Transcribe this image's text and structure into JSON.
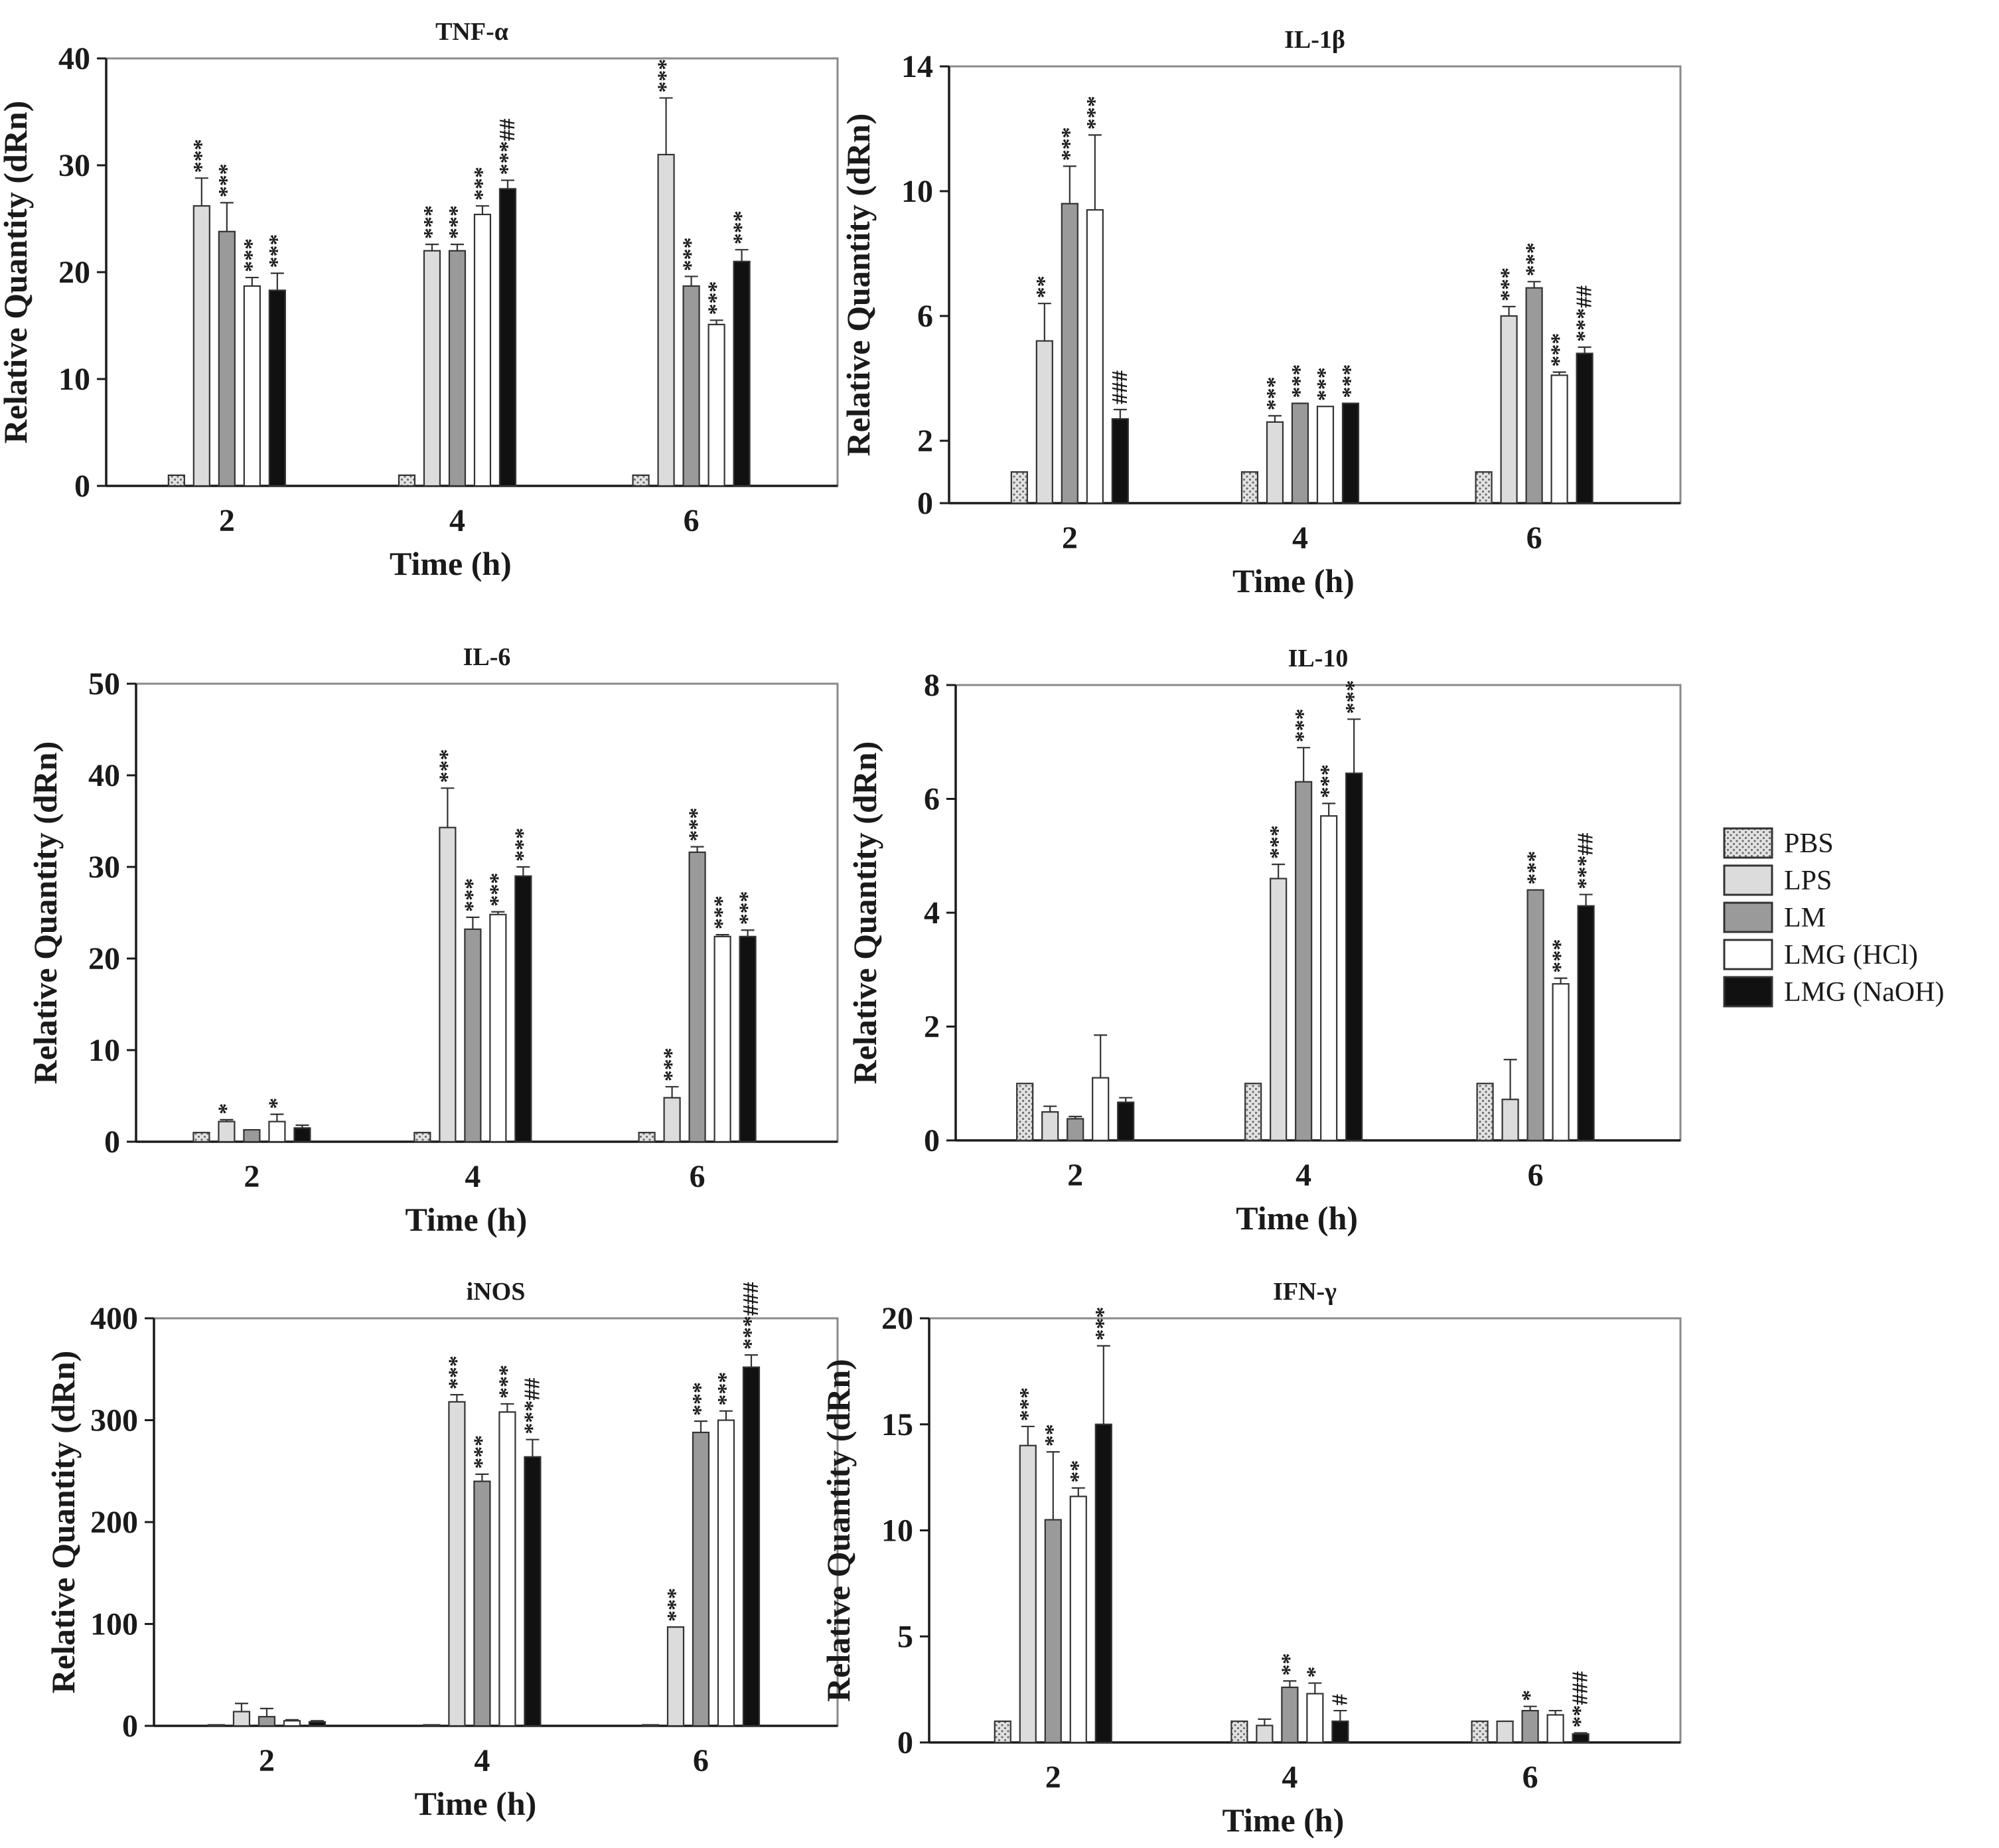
{
  "figure": {
    "background": "#ffffff"
  },
  "groups": [
    {
      "name": "PBS",
      "fill": "#d8d8d8",
      "pattern": "dots"
    },
    {
      "name": "LPS",
      "fill": "#dcdcdc",
      "pattern": "none"
    },
    {
      "name": "LM",
      "fill": "#9a9a9a",
      "pattern": "none"
    },
    {
      "name": "LMG (HCl)",
      "fill": "#ffffff",
      "pattern": "none"
    },
    {
      "name": "LMG (NaOH)",
      "fill": "#111111",
      "pattern": "none"
    }
  ],
  "chart_data": [
    {
      "type": "bar",
      "title": "TNF-α",
      "xlabel": "Time (h)",
      "ylabel": "Relative Quantity (dRn)",
      "categories": [
        "2",
        "4",
        "6"
      ],
      "ylim": [
        0,
        40
      ],
      "yticks": [
        0,
        10,
        20,
        30,
        40
      ],
      "series": [
        {
          "name": "PBS",
          "values": [
            1,
            1,
            1
          ],
          "errors": [
            0,
            0,
            0
          ],
          "annotations": [
            "",
            "",
            ""
          ]
        },
        {
          "name": "LPS",
          "values": [
            26.2,
            22,
            31
          ],
          "errors": [
            2.6,
            0.6,
            5.3
          ],
          "annotations": [
            "***",
            "***",
            "***"
          ]
        },
        {
          "name": "LM",
          "values": [
            23.8,
            22,
            18.7
          ],
          "errors": [
            2.7,
            0.6,
            0.9
          ],
          "annotations": [
            "***",
            "***",
            "***"
          ]
        },
        {
          "name": "LMG (HCl)",
          "values": [
            18.7,
            25.4,
            15.1
          ],
          "errors": [
            0.8,
            0.8,
            0.4
          ],
          "annotations": [
            "***",
            "***",
            "***"
          ]
        },
        {
          "name": "LMG (NaOH)",
          "values": [
            18.3,
            27.8,
            21
          ],
          "errors": [
            1.6,
            0.8,
            1.1
          ],
          "annotations": [
            "***",
            "***##",
            "***"
          ]
        }
      ]
    },
    {
      "type": "bar",
      "title": "IL-1β",
      "xlabel": "Time (h)",
      "ylabel": "Relative Quantity (dRn)",
      "categories": [
        "2",
        "4",
        "6"
      ],
      "ylim": [
        0,
        14
      ],
      "yticks": [
        0,
        2,
        6,
        10,
        14
      ],
      "series": [
        {
          "name": "PBS",
          "values": [
            1,
            1,
            1
          ],
          "errors": [
            0,
            0,
            0
          ],
          "annotations": [
            "",
            "",
            ""
          ]
        },
        {
          "name": "LPS",
          "values": [
            5.2,
            2.6,
            6
          ],
          "errors": [
            1.2,
            0.2,
            0.3
          ],
          "annotations": [
            "**",
            "***",
            "***"
          ]
        },
        {
          "name": "LM",
          "values": [
            9.6,
            3.2,
            6.9
          ],
          "errors": [
            1.2,
            0,
            0.2
          ],
          "annotations": [
            "***",
            "***",
            "***"
          ]
        },
        {
          "name": "LMG (HCl)",
          "values": [
            9.4,
            3.1,
            4.1
          ],
          "errors": [
            2.4,
            0,
            0.1
          ],
          "annotations": [
            "***",
            "***",
            "***"
          ]
        },
        {
          "name": "LMG (NaOH)",
          "values": [
            2.7,
            3.2,
            4.8
          ],
          "errors": [
            0.3,
            0,
            0.2
          ],
          "annotations": [
            "###",
            "***",
            "***##"
          ]
        }
      ]
    },
    {
      "type": "bar",
      "title": "IL-6",
      "xlabel": "Time (h)",
      "ylabel": "Relative Quantity (dRn)",
      "categories": [
        "2",
        "4",
        "6"
      ],
      "ylim": [
        0,
        50
      ],
      "yticks": [
        0,
        10,
        20,
        30,
        40,
        50
      ],
      "series": [
        {
          "name": "PBS",
          "values": [
            1,
            1,
            1
          ],
          "errors": [
            0,
            0,
            0
          ],
          "annotations": [
            "",
            "",
            ""
          ]
        },
        {
          "name": "LPS",
          "values": [
            2.2,
            34.3,
            4.8
          ],
          "errors": [
            0.2,
            4.3,
            1.2
          ],
          "annotations": [
            "*",
            "***",
            "***"
          ]
        },
        {
          "name": "LM",
          "values": [
            1.3,
            23.2,
            31.6
          ],
          "errors": [
            0,
            1.3,
            0.6
          ],
          "annotations": [
            "",
            "***",
            "***"
          ]
        },
        {
          "name": "LMG (HCl)",
          "values": [
            2.2,
            24.8,
            22.4
          ],
          "errors": [
            0.8,
            0.3,
            0.2
          ],
          "annotations": [
            "*",
            "***",
            "***"
          ]
        },
        {
          "name": "LMG (NaOH)",
          "values": [
            1.5,
            29,
            22.4
          ],
          "errors": [
            0.3,
            1,
            0.7
          ],
          "annotations": [
            "",
            "***",
            "***"
          ]
        }
      ]
    },
    {
      "type": "bar",
      "title": "IL-10",
      "xlabel": "Time (h)",
      "ylabel": "Relative Quantity (dRn)",
      "categories": [
        "2",
        "4",
        "6"
      ],
      "ylim": [
        0,
        8
      ],
      "yticks": [
        0,
        2,
        4,
        6,
        8
      ],
      "series": [
        {
          "name": "PBS",
          "values": [
            1,
            1,
            1
          ],
          "errors": [
            0,
            0,
            0
          ],
          "annotations": [
            "",
            "",
            ""
          ]
        },
        {
          "name": "LPS",
          "values": [
            0.5,
            4.6,
            0.72
          ],
          "errors": [
            0.1,
            0.25,
            0.7
          ],
          "annotations": [
            "",
            "***",
            ""
          ]
        },
        {
          "name": "LM",
          "values": [
            0.38,
            6.3,
            4.4
          ],
          "errors": [
            0.04,
            0.6,
            0
          ],
          "annotations": [
            "",
            "***",
            "***"
          ]
        },
        {
          "name": "LMG (HCl)",
          "values": [
            1.1,
            5.7,
            2.75
          ],
          "errors": [
            0.75,
            0.22,
            0.1
          ],
          "annotations": [
            "",
            "***",
            "***"
          ]
        },
        {
          "name": "LMG (NaOH)",
          "values": [
            0.67,
            6.45,
            4.12
          ],
          "errors": [
            0.08,
            0.95,
            0.2
          ],
          "annotations": [
            "",
            "***",
            "***##"
          ]
        }
      ]
    },
    {
      "type": "bar",
      "title": "iNOS",
      "xlabel": "Time (h)",
      "ylabel": "Relative Quantity (dRn)",
      "categories": [
        "2",
        "4",
        "6"
      ],
      "ylim": [
        0,
        400
      ],
      "yticks": [
        0,
        100,
        200,
        300,
        400
      ],
      "series": [
        {
          "name": "PBS",
          "values": [
            1,
            1,
            1
          ],
          "errors": [
            0,
            0,
            0
          ],
          "annotations": [
            "",
            "",
            ""
          ]
        },
        {
          "name": "LPS",
          "values": [
            14,
            318,
            97
          ],
          "errors": [
            8,
            7,
            0
          ],
          "annotations": [
            "",
            "***",
            "***"
          ]
        },
        {
          "name": "LM",
          "values": [
            9,
            240,
            288
          ],
          "errors": [
            8,
            7,
            11
          ],
          "annotations": [
            "",
            "***",
            "***"
          ]
        },
        {
          "name": "LMG (HCl)",
          "values": [
            5,
            308,
            300
          ],
          "errors": [
            1,
            8,
            9
          ],
          "annotations": [
            "",
            "***",
            "***"
          ]
        },
        {
          "name": "LMG (NaOH)",
          "values": [
            4,
            264,
            352
          ],
          "errors": [
            1,
            17,
            12
          ],
          "annotations": [
            "",
            "***##",
            "***###"
          ]
        }
      ]
    },
    {
      "type": "bar",
      "title": "IFN-γ",
      "xlabel": "Time (h)",
      "ylabel": "Relative Quantity (dRn)",
      "categories": [
        "2",
        "4",
        "6"
      ],
      "ylim": [
        0,
        20
      ],
      "yticks": [
        0,
        5,
        10,
        15,
        20
      ],
      "series": [
        {
          "name": "PBS",
          "values": [
            1,
            1,
            1
          ],
          "errors": [
            0,
            0,
            0
          ],
          "annotations": [
            "",
            "",
            ""
          ]
        },
        {
          "name": "LPS",
          "values": [
            14,
            0.8,
            1
          ],
          "errors": [
            0.9,
            0.3,
            0
          ],
          "annotations": [
            "***",
            "",
            ""
          ]
        },
        {
          "name": "LM",
          "values": [
            10.5,
            2.6,
            1.5
          ],
          "errors": [
            3.2,
            0.3,
            0.2
          ],
          "annotations": [
            "**",
            "**",
            "*"
          ]
        },
        {
          "name": "LMG (HCl)",
          "values": [
            11.6,
            2.3,
            1.3
          ],
          "errors": [
            0.4,
            0.5,
            0.2
          ],
          "annotations": [
            "**",
            "*",
            ""
          ]
        },
        {
          "name": "LMG (NaOH)",
          "values": [
            15,
            1,
            0.4
          ],
          "errors": [
            3.7,
            0.5,
            0.05
          ],
          "annotations": [
            "***",
            "#",
            "**###"
          ]
        }
      ]
    }
  ]
}
